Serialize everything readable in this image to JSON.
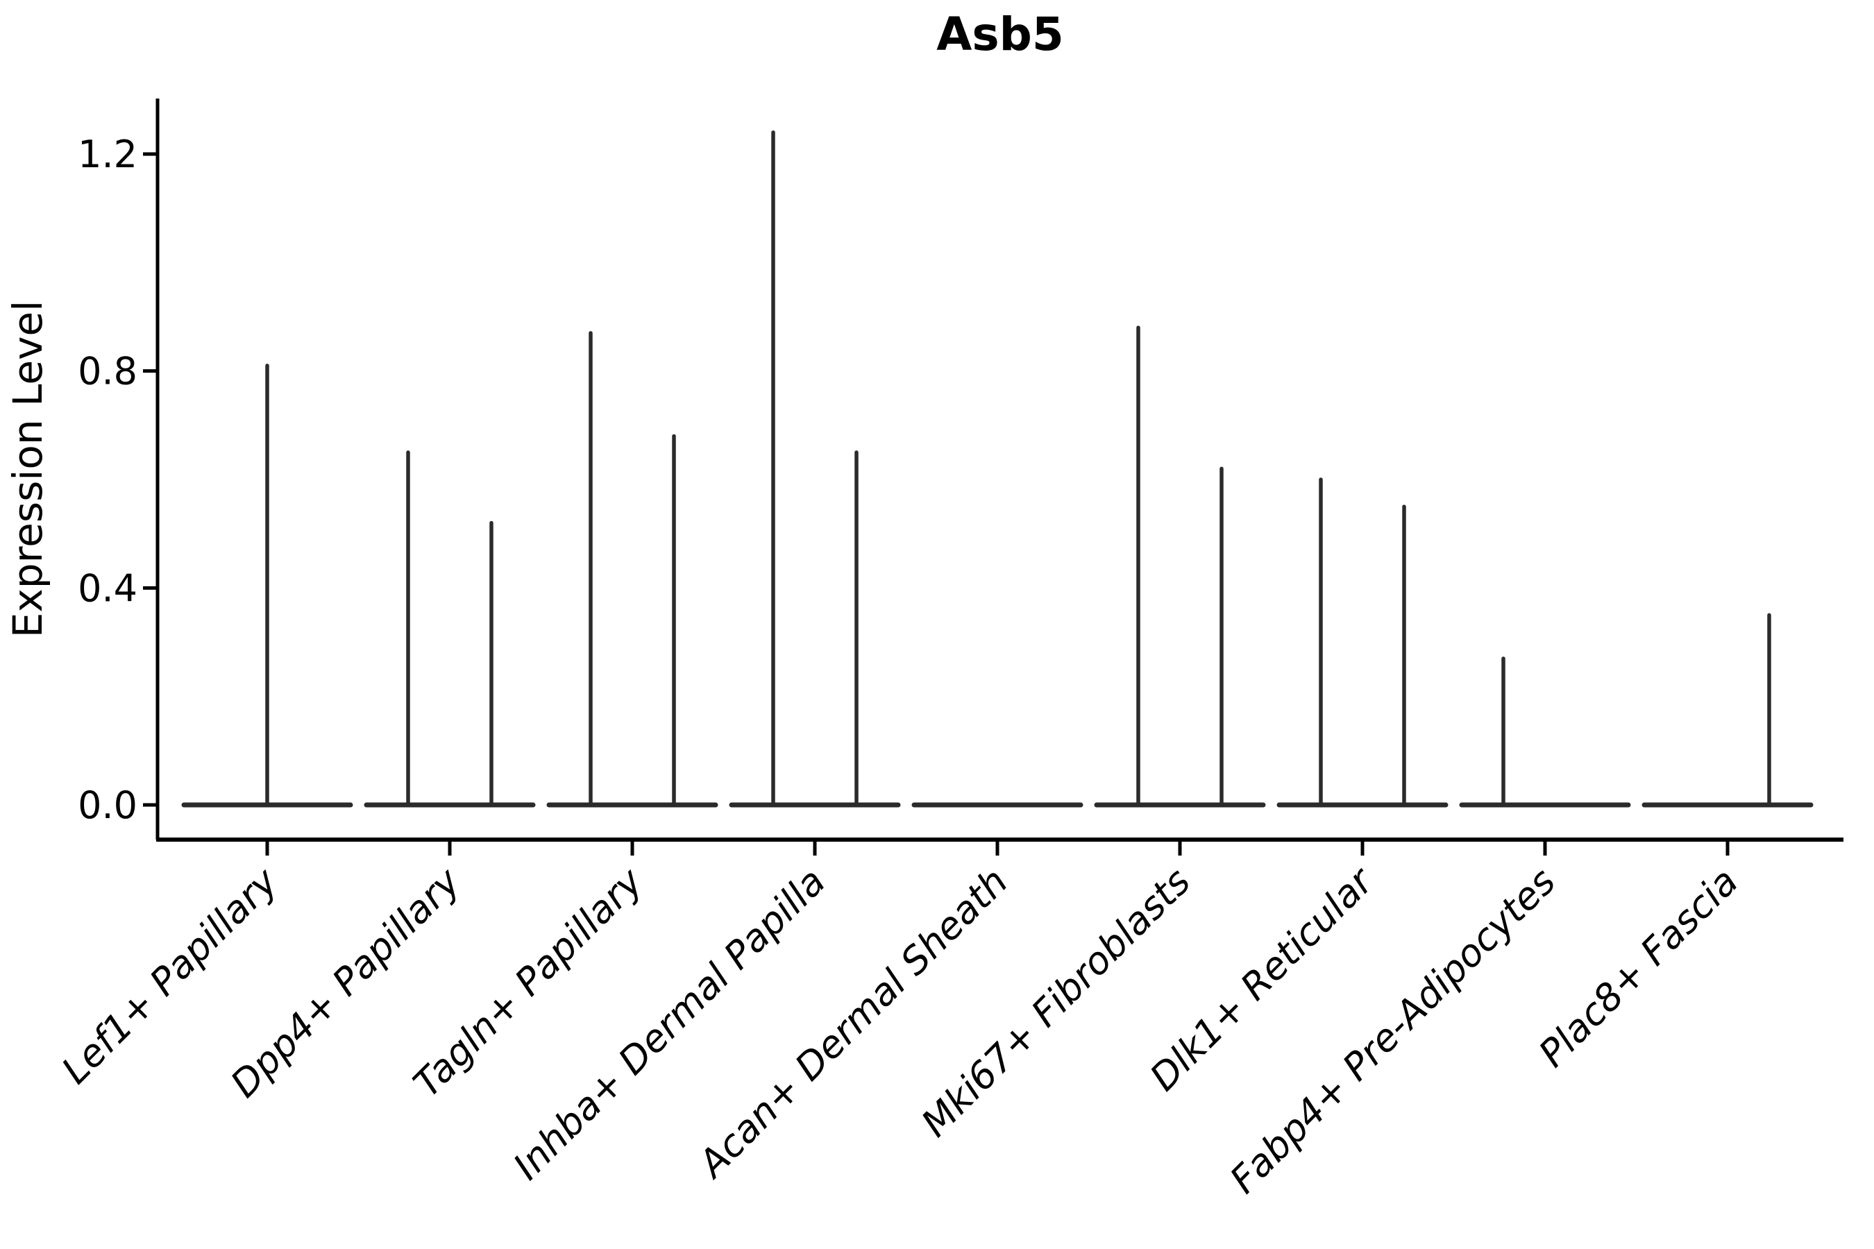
{
  "figure": {
    "background": "#ffffff"
  },
  "colors": {
    "violin_line": "#2b2b2b",
    "axis": "#000000",
    "text": "#000000"
  },
  "chart_data": {
    "type": "violin",
    "title": "Asb5",
    "xlabel": "",
    "ylabel": "Expression Level",
    "grid": false,
    "legend_position": "none",
    "x_tick_rotation": 45,
    "ylim": [
      -0.064,
      1.3
    ],
    "yticks": [
      {
        "label": "0.0",
        "value": 0.0
      },
      {
        "label": "0.4",
        "value": 0.4
      },
      {
        "label": "0.8",
        "value": 0.8
      },
      {
        "label": "1.2",
        "value": 1.2
      }
    ],
    "categories": [
      "Lef1+ Papillary",
      "Dpp4+ Papillary",
      "Tagln+ Papillary",
      "Inhba+ Dermal Papilla",
      "Acan+ Dermal Sheath",
      "Mki67+ Fibroblasts",
      "Dlk1+ Reticular",
      "Fabp4+ Pre-Adipocytes",
      "Plac8+ Fascia"
    ],
    "violins": [
      {
        "category": "Lef1+ Papillary",
        "parts": [
          {
            "side": "center",
            "max_expression": 0.81
          }
        ]
      },
      {
        "category": "Dpp4+ Papillary",
        "parts": [
          {
            "side": "left",
            "max_expression": 0.65
          },
          {
            "side": "right",
            "max_expression": 0.52
          }
        ]
      },
      {
        "category": "Tagln+ Papillary",
        "parts": [
          {
            "side": "left",
            "max_expression": 0.87
          },
          {
            "side": "right",
            "max_expression": 0.68
          }
        ]
      },
      {
        "category": "Inhba+ Dermal Papilla",
        "parts": [
          {
            "side": "left",
            "max_expression": 1.24
          },
          {
            "side": "right",
            "max_expression": 0.65
          }
        ]
      },
      {
        "category": "Acan+ Dermal Sheath",
        "parts": []
      },
      {
        "category": "Mki67+ Fibroblasts",
        "parts": [
          {
            "side": "left",
            "max_expression": 0.88
          },
          {
            "side": "right",
            "max_expression": 0.62
          }
        ]
      },
      {
        "category": "Dlk1+ Reticular",
        "parts": [
          {
            "side": "left",
            "max_expression": 0.6
          },
          {
            "side": "right",
            "max_expression": 0.55
          }
        ]
      },
      {
        "category": "Fabp4+ Pre-Adipocytes",
        "parts": [
          {
            "side": "left",
            "max_expression": 0.27
          }
        ]
      },
      {
        "category": "Plac8+ Fascia",
        "parts": [
          {
            "side": "right",
            "max_expression": 0.35
          }
        ]
      }
    ],
    "baseline_expression": 0.0
  }
}
